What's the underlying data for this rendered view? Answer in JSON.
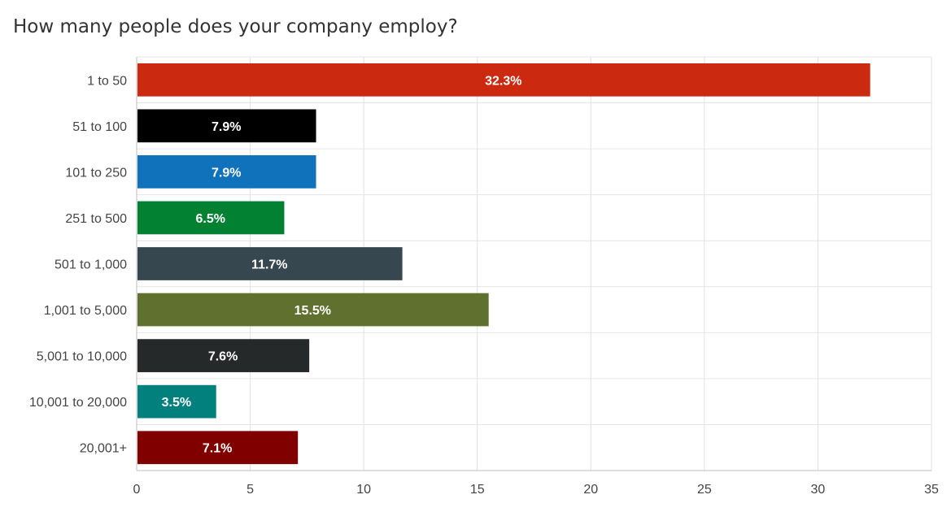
{
  "chart_data": {
    "type": "bar",
    "orientation": "horizontal",
    "title": "How many people does your company employ?",
    "categories": [
      "1 to 50",
      "51 to 100",
      "101 to 250",
      "251 to 500",
      "501 to 1,000",
      "1,001 to 5,000",
      "5,001 to 10,000",
      "10,001 to 20,000",
      "20,001+"
    ],
    "values": [
      32.3,
      7.9,
      7.9,
      6.5,
      11.7,
      15.5,
      7.6,
      3.5,
      7.1
    ],
    "labels": [
      "32.3%",
      "7.9%",
      "7.9%",
      "6.5%",
      "11.7%",
      "15.5%",
      "7.6%",
      "3.5%",
      "7.1%"
    ],
    "colors": [
      "#cc2a10",
      "#000000",
      "#0f72bb",
      "#038133",
      "#37474f",
      "#60702f",
      "#262929",
      "#01807e",
      "#800000"
    ],
    "xlim": [
      0,
      35
    ],
    "xticks": [
      0,
      5,
      10,
      15,
      20,
      25,
      30,
      35
    ],
    "xlabel": "",
    "ylabel": "",
    "grid": true
  }
}
